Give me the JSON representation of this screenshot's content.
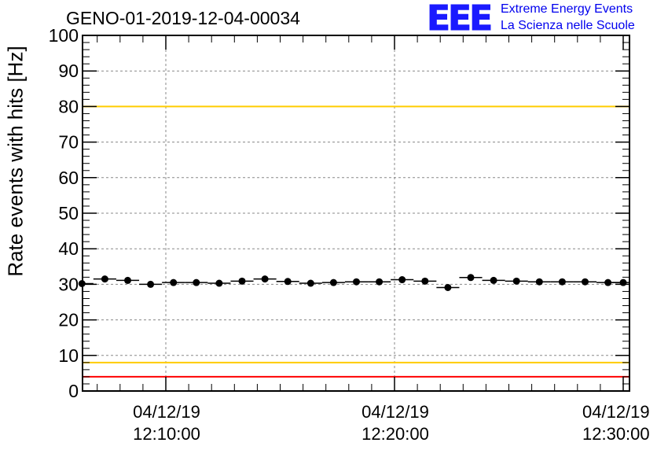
{
  "title": "GENO-01-2019-12-04-00034",
  "logo": {
    "mark": "EEE",
    "line1": "Extreme Energy Events",
    "line2": "La Scienza nelle Scuole",
    "color": "#1a1aff"
  },
  "chart_data": {
    "type": "scatter",
    "title": "GENO-01-2019-12-04-00034",
    "ylabel": "Rate events with hits [Hz]",
    "xlabel": "",
    "ylim": [
      0,
      100
    ],
    "yticks": [
      "0",
      "10",
      "20",
      "30",
      "40",
      "50",
      "60",
      "70",
      "80",
      "90",
      "100"
    ],
    "xticks": [
      {
        "date": "04/12/19",
        "time": "12:10:00"
      },
      {
        "date": "04/12/19",
        "time": "12:20:00"
      },
      {
        "date": "04/12/19",
        "time": "12:30:00"
      }
    ],
    "grid": true,
    "reference_lines": [
      {
        "value": 100,
        "color": "#ff0000"
      },
      {
        "value": 80,
        "color": "#ffcc00"
      },
      {
        "value": 8,
        "color": "#ffcc00"
      },
      {
        "value": 4,
        "color": "#ff0000"
      }
    ],
    "series": [
      {
        "x": [
          "12:06:20",
          "12:07:20",
          "12:08:20",
          "12:09:20",
          "12:10:20",
          "12:11:20",
          "12:12:20",
          "12:13:20",
          "12:14:20",
          "12:15:20",
          "12:16:20",
          "12:17:20",
          "12:18:20",
          "12:19:20",
          "12:20:20",
          "12:21:20",
          "12:22:20",
          "12:23:20",
          "12:24:20",
          "12:25:20",
          "12:26:20",
          "12:27:20",
          "12:28:20",
          "12:29:20",
          "12:30:00"
        ],
        "values": [
          30.2,
          31.5,
          31.1,
          30.0,
          30.5,
          30.5,
          30.3,
          30.9,
          31.5,
          30.8,
          30.3,
          30.5,
          30.7,
          30.7,
          31.3,
          30.9,
          29.1,
          31.9,
          31.1,
          30.9,
          30.7,
          30.7,
          30.7,
          30.5,
          30.5
        ]
      }
    ]
  }
}
